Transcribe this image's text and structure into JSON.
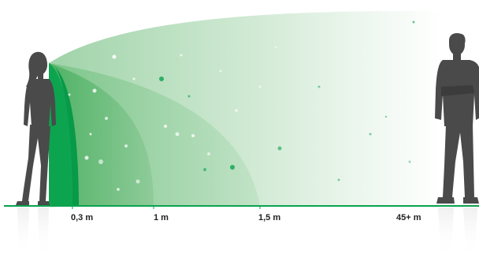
{
  "distances": [
    {
      "label": "0,3 m"
    },
    {
      "label": "1 m"
    },
    {
      "label": "1,5 m"
    },
    {
      "label": "45+ m"
    }
  ],
  "colors": {
    "zone_dark": "#0aa34f",
    "zone_mid": "#5cb870",
    "zone_light": "#a9d9b1",
    "zone_far": "#e3f1e5",
    "ground": "#0aa34f",
    "figure": "#4a4a4a"
  },
  "figures": {
    "left": "woman-silhouette",
    "right": "man-silhouette"
  }
}
